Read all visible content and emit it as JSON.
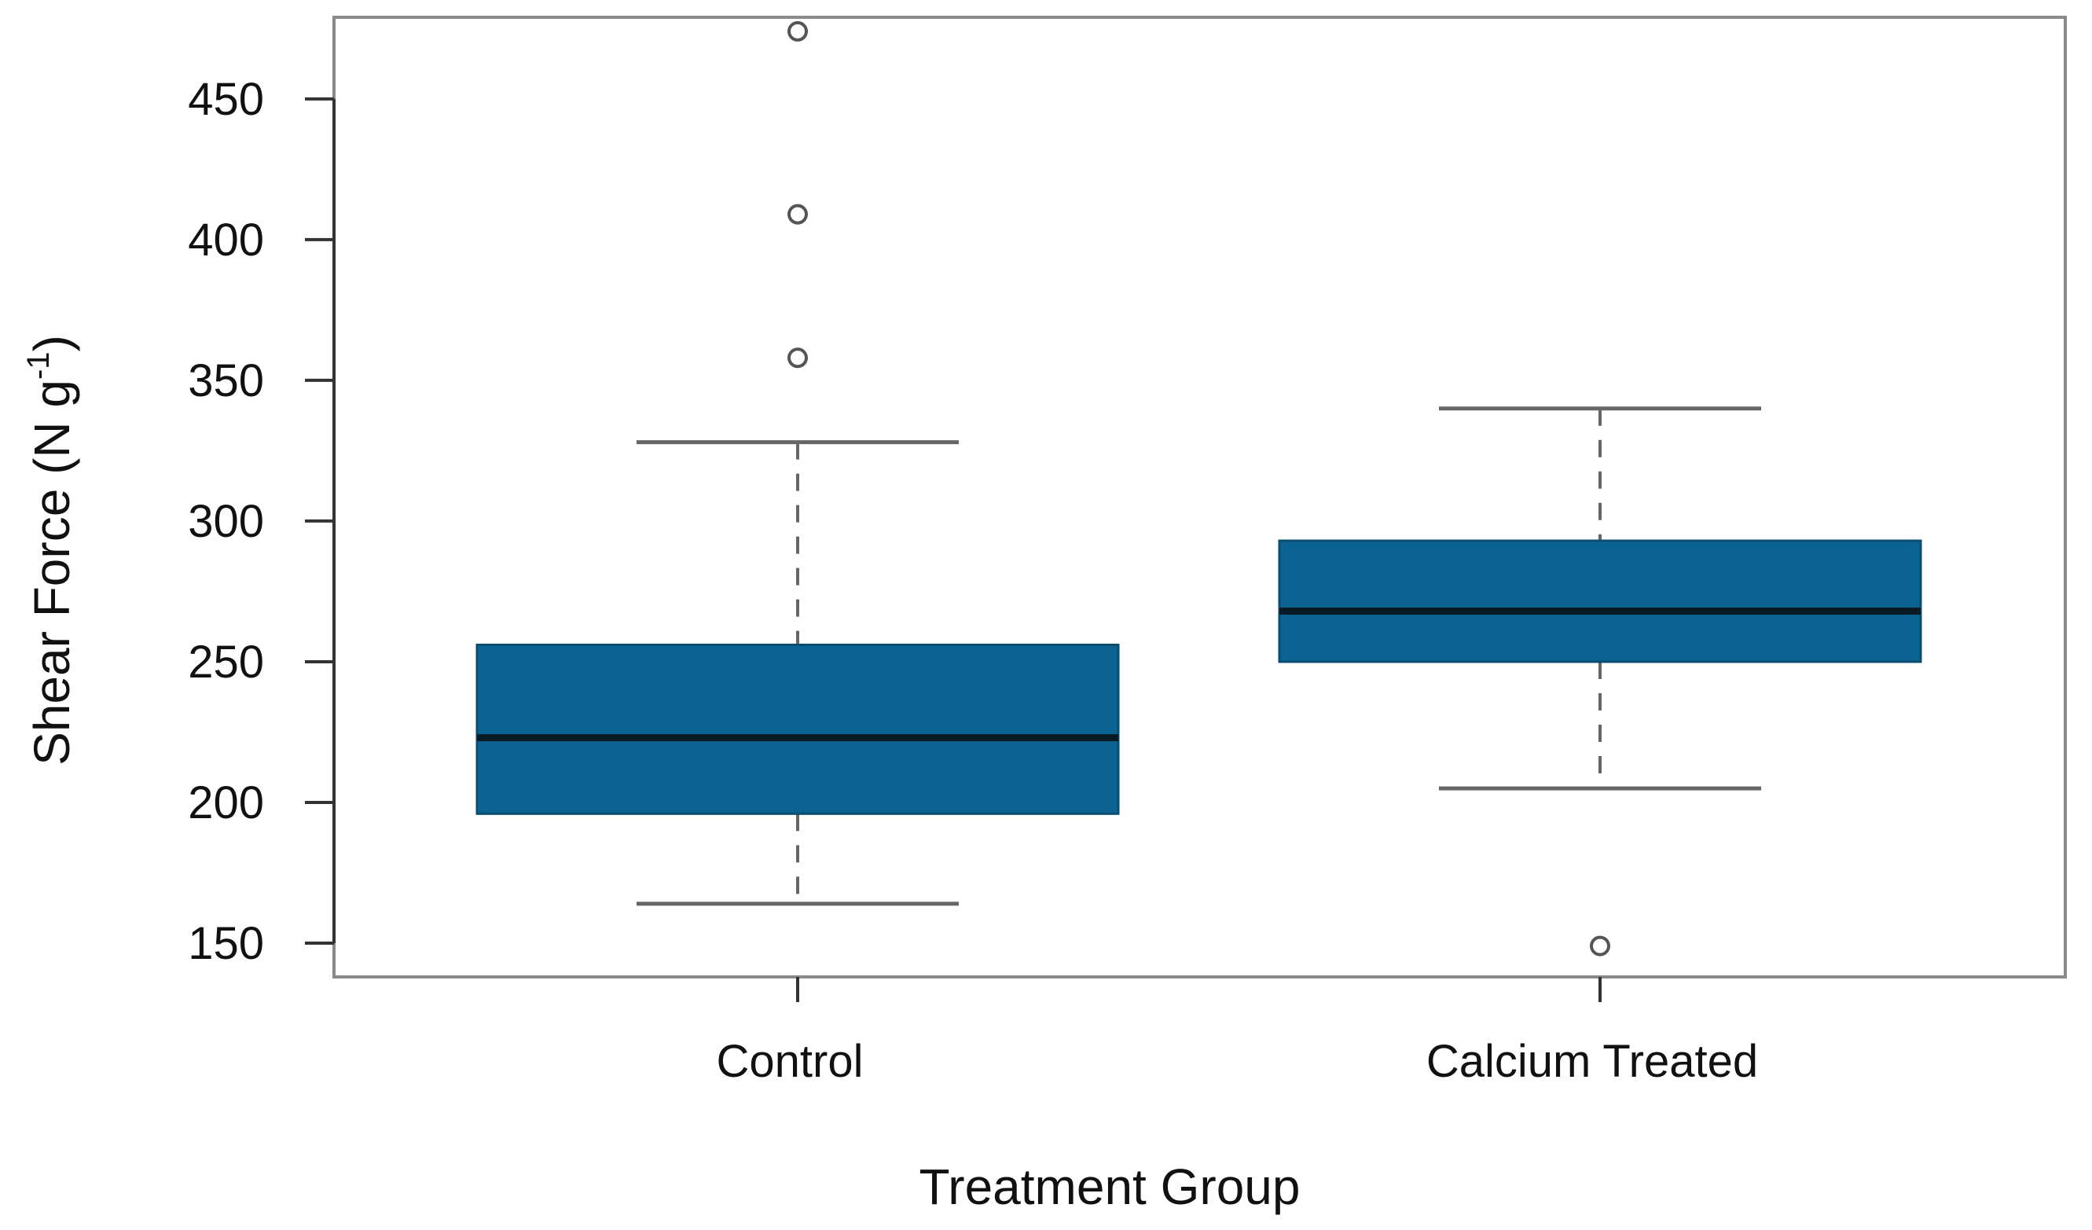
{
  "chart_data": {
    "type": "boxplot",
    "title": "",
    "xlabel": "Treatment Group",
    "ylabel": "Shear Force (N g",
    "ylabel_superscript": "-1",
    "ylabel_suffix": ")",
    "ylim": [
      138,
      479
    ],
    "yticks": [
      150,
      200,
      250,
      300,
      350,
      400,
      450
    ],
    "categories": [
      "Control",
      "Calcium Treated"
    ],
    "box_color": "#0b6391",
    "median_color": "#0a1a24",
    "whisker_color": "#666666",
    "frame_color": "#8a8a8a",
    "series": [
      {
        "name": "Control",
        "whisker_low": 164,
        "q1": 196,
        "median": 223,
        "q3": 256,
        "whisker_high": 328,
        "outliers": [
          358,
          409,
          474
        ]
      },
      {
        "name": "Calcium Treated",
        "whisker_low": 205,
        "q1": 250,
        "median": 268,
        "q3": 293,
        "whisker_high": 340,
        "outliers": [
          149
        ]
      }
    ]
  }
}
